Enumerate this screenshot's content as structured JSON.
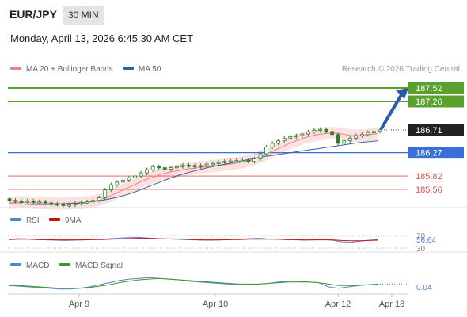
{
  "header": {
    "pair": "EUR/JPY",
    "timeframe": "30 MIN",
    "datetime": "Monday, April 13, 2026 6:45:30 AM CET"
  },
  "legend": {
    "ma20": "MA 20 + Bollinger Bands",
    "ma50": "MA 50",
    "source": "Research © 2026 Trading Central"
  },
  "colors": {
    "ma20": "#f08080",
    "ma50": "#3a5fa0",
    "candle": "#2e7d32",
    "band": "#fbdcdc",
    "resistance": "#5aa02c",
    "pivot": "#3a6fd8",
    "support": "#e05050",
    "current": "#222222",
    "arrow": "#2a5aa8",
    "rsi": "#5b7fd4",
    "rsi_ma": "#d01010",
    "macd": "#5b7fd4",
    "macd_signal": "#3a9a20"
  },
  "chart_data": [
    {
      "type": "candlestick",
      "name": "EUR/JPY 30 MIN",
      "x_ticks": [
        "Apr 9",
        "Apr 10",
        "Apr 12",
        "Apr 18"
      ],
      "ylim": [
        185.3,
        187.75
      ],
      "series": [
        {
          "name": "price",
          "values": [
            185.35,
            185.33,
            185.32,
            185.34,
            185.31,
            185.32,
            185.3,
            185.28,
            185.27,
            185.25,
            185.26,
            185.29,
            185.31,
            185.32,
            185.35,
            185.4,
            185.55,
            185.65,
            185.7,
            185.74,
            185.78,
            185.82,
            185.88,
            185.94,
            186.0,
            185.98,
            185.95,
            185.98,
            186.0,
            186.03,
            186.02,
            186.0,
            186.02,
            186.05,
            186.06,
            186.08,
            186.1,
            186.11,
            186.12,
            186.12,
            186.1,
            186.15,
            186.25,
            186.38,
            186.45,
            186.5,
            186.55,
            186.58,
            186.6,
            186.63,
            186.67,
            186.7,
            186.72,
            186.68,
            186.62,
            186.45,
            186.5,
            186.55,
            186.6,
            186.62,
            186.66,
            186.68,
            186.71
          ]
        },
        {
          "name": "MA 20",
          "values": [
            185.3,
            185.31,
            185.31,
            185.3,
            185.3,
            185.29,
            185.29,
            185.3,
            185.3,
            185.32,
            185.36,
            185.42,
            185.5,
            185.58,
            185.66,
            185.74,
            185.8,
            185.86,
            185.9,
            185.93,
            185.96,
            185.98,
            186.0,
            186.02,
            186.04,
            186.06,
            186.09,
            186.13,
            186.2,
            186.28,
            186.36,
            186.44,
            186.51,
            186.57,
            186.61,
            186.64,
            186.65,
            186.63,
            186.6,
            186.6,
            186.62,
            186.64
          ]
        },
        {
          "name": "MA 50",
          "values": [
            185.28,
            185.28,
            185.27,
            185.27,
            185.27,
            185.28,
            185.29,
            185.3,
            185.33,
            185.36,
            185.4,
            185.45,
            185.52,
            185.6,
            185.68,
            185.76,
            185.83,
            185.89,
            185.94,
            185.99,
            186.03,
            186.07,
            186.11,
            186.15,
            186.19,
            186.22,
            186.25,
            186.28,
            186.31,
            186.34,
            186.37,
            186.4,
            186.43,
            186.46,
            186.48,
            186.5
          ]
        }
      ],
      "levels": [
        {
          "value": 187.52,
          "label": "187.52",
          "kind": "resistance"
        },
        {
          "value": 187.26,
          "label": "187.26",
          "kind": "resistance"
        },
        {
          "value": 186.71,
          "label": "186.71",
          "kind": "current"
        },
        {
          "value": 186.27,
          "label": "186.27",
          "kind": "pivot"
        },
        {
          "value": 185.82,
          "label": "185.82",
          "kind": "support"
        },
        {
          "value": 185.56,
          "label": "185.56",
          "kind": "support"
        }
      ],
      "legend_position": "top-left"
    },
    {
      "type": "line",
      "name": "RSI",
      "legend": [
        "RSI",
        "9MA"
      ],
      "levels": [
        "70",
        "30"
      ],
      "last_value": "56.64",
      "series": [
        {
          "name": "RSI",
          "values": [
            58,
            60,
            59,
            57,
            56,
            55,
            54,
            55,
            56,
            57,
            58,
            60,
            62,
            63,
            64,
            62,
            60,
            59,
            58,
            57,
            56,
            55,
            55,
            56,
            57,
            58,
            60,
            61,
            59,
            58,
            57,
            56,
            55,
            56,
            57,
            55,
            50,
            48,
            52,
            55,
            56.64
          ]
        },
        {
          "name": "9MA",
          "values": [
            57,
            58,
            58,
            57,
            57,
            56,
            56,
            56,
            56,
            57,
            57,
            58,
            59,
            60,
            61,
            61,
            60,
            59,
            59,
            58,
            57,
            56,
            56,
            56,
            57,
            57,
            58,
            58,
            58,
            58,
            57,
            57,
            56,
            56,
            56,
            56,
            54,
            53,
            53,
            54,
            55
          ]
        }
      ]
    },
    {
      "type": "line",
      "name": "MACD",
      "legend": [
        "MACD",
        "MACD Signal"
      ],
      "last_value": "0.04",
      "series": [
        {
          "name": "MACD",
          "values": [
            0.02,
            0.01,
            0.0,
            -0.01,
            -0.02,
            -0.03,
            -0.03,
            -0.02,
            0.0,
            0.03,
            0.06,
            0.09,
            0.11,
            0.12,
            0.13,
            0.12,
            0.11,
            0.1,
            0.08,
            0.07,
            0.06,
            0.05,
            0.04,
            0.03,
            0.03,
            0.04,
            0.05,
            0.07,
            0.08,
            0.08,
            0.07,
            0.06,
            0.0,
            -0.02,
            0.0,
            0.02,
            0.03,
            0.04
          ]
        },
        {
          "name": "MACD Signal",
          "values": [
            0.02,
            0.02,
            0.01,
            0.0,
            -0.01,
            -0.02,
            -0.02,
            -0.02,
            -0.01,
            0.01,
            0.03,
            0.06,
            0.08,
            0.1,
            0.11,
            0.12,
            0.11,
            0.1,
            0.09,
            0.08,
            0.07,
            0.06,
            0.05,
            0.04,
            0.04,
            0.04,
            0.05,
            0.06,
            0.07,
            0.07,
            0.07,
            0.06,
            0.04,
            0.02,
            0.02,
            0.02,
            0.03,
            0.04
          ]
        }
      ]
    }
  ]
}
